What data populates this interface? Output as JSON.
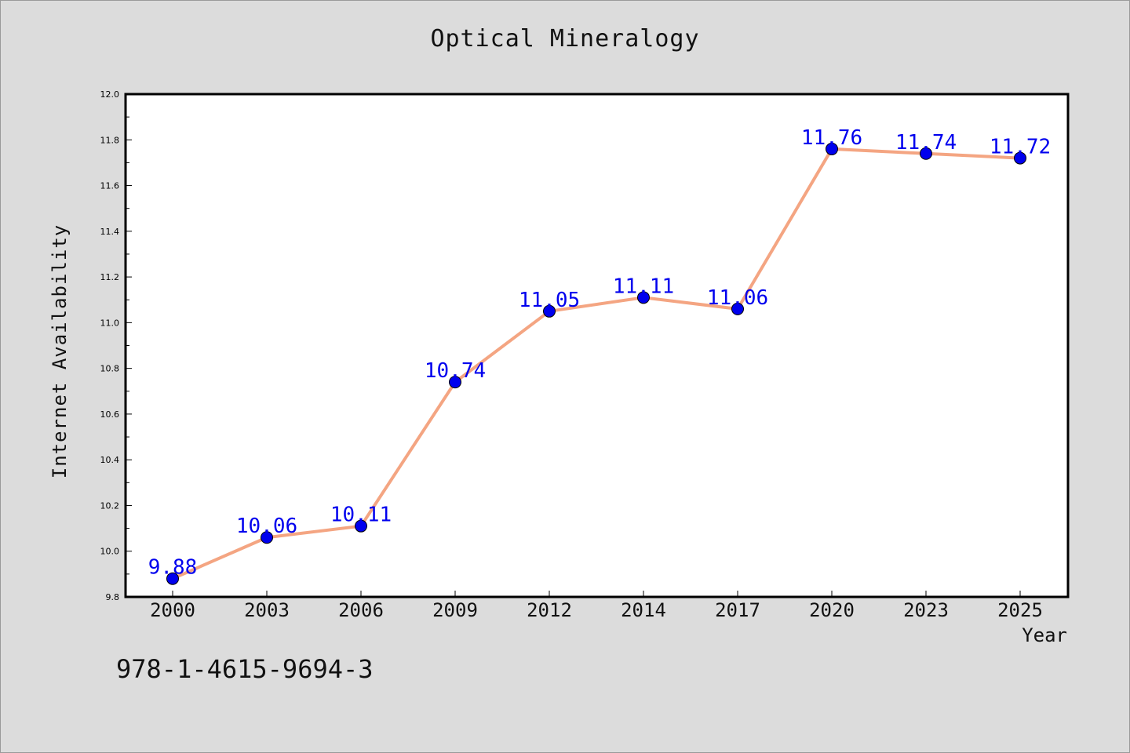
{
  "chart_data": {
    "type": "line",
    "title": "Optical Mineralogy",
    "xlabel": "Year",
    "ylabel": "Internet Availability",
    "categories": [
      "2000",
      "2003",
      "2006",
      "2009",
      "2012",
      "2014",
      "2017",
      "2020",
      "2023",
      "2025"
    ],
    "series": [
      {
        "values": [
          9.88,
          10.06,
          10.11,
          10.74,
          11.05,
          11.11,
          11.06,
          11.76,
          11.74,
          11.72
        ],
        "labels": [
          "9.88",
          "10.06",
          "10.11",
          "10.74",
          "11.05",
          "11.11",
          "11.06",
          "11.76",
          "11.74",
          "11.72"
        ],
        "line_color": "#f4a582",
        "marker_color": "#0000ee",
        "label_color": "#0000ee"
      }
    ],
    "ylim": [
      9.8,
      12.0
    ],
    "yticks": [
      "9.8",
      "10.0",
      "10.2",
      "10.4",
      "10.6",
      "10.8",
      "11.0",
      "11.2",
      "11.4",
      "11.6",
      "11.8",
      "12.0"
    ],
    "grid": false,
    "legend": "none"
  },
  "footnote": "978-1-4615-9694-3"
}
